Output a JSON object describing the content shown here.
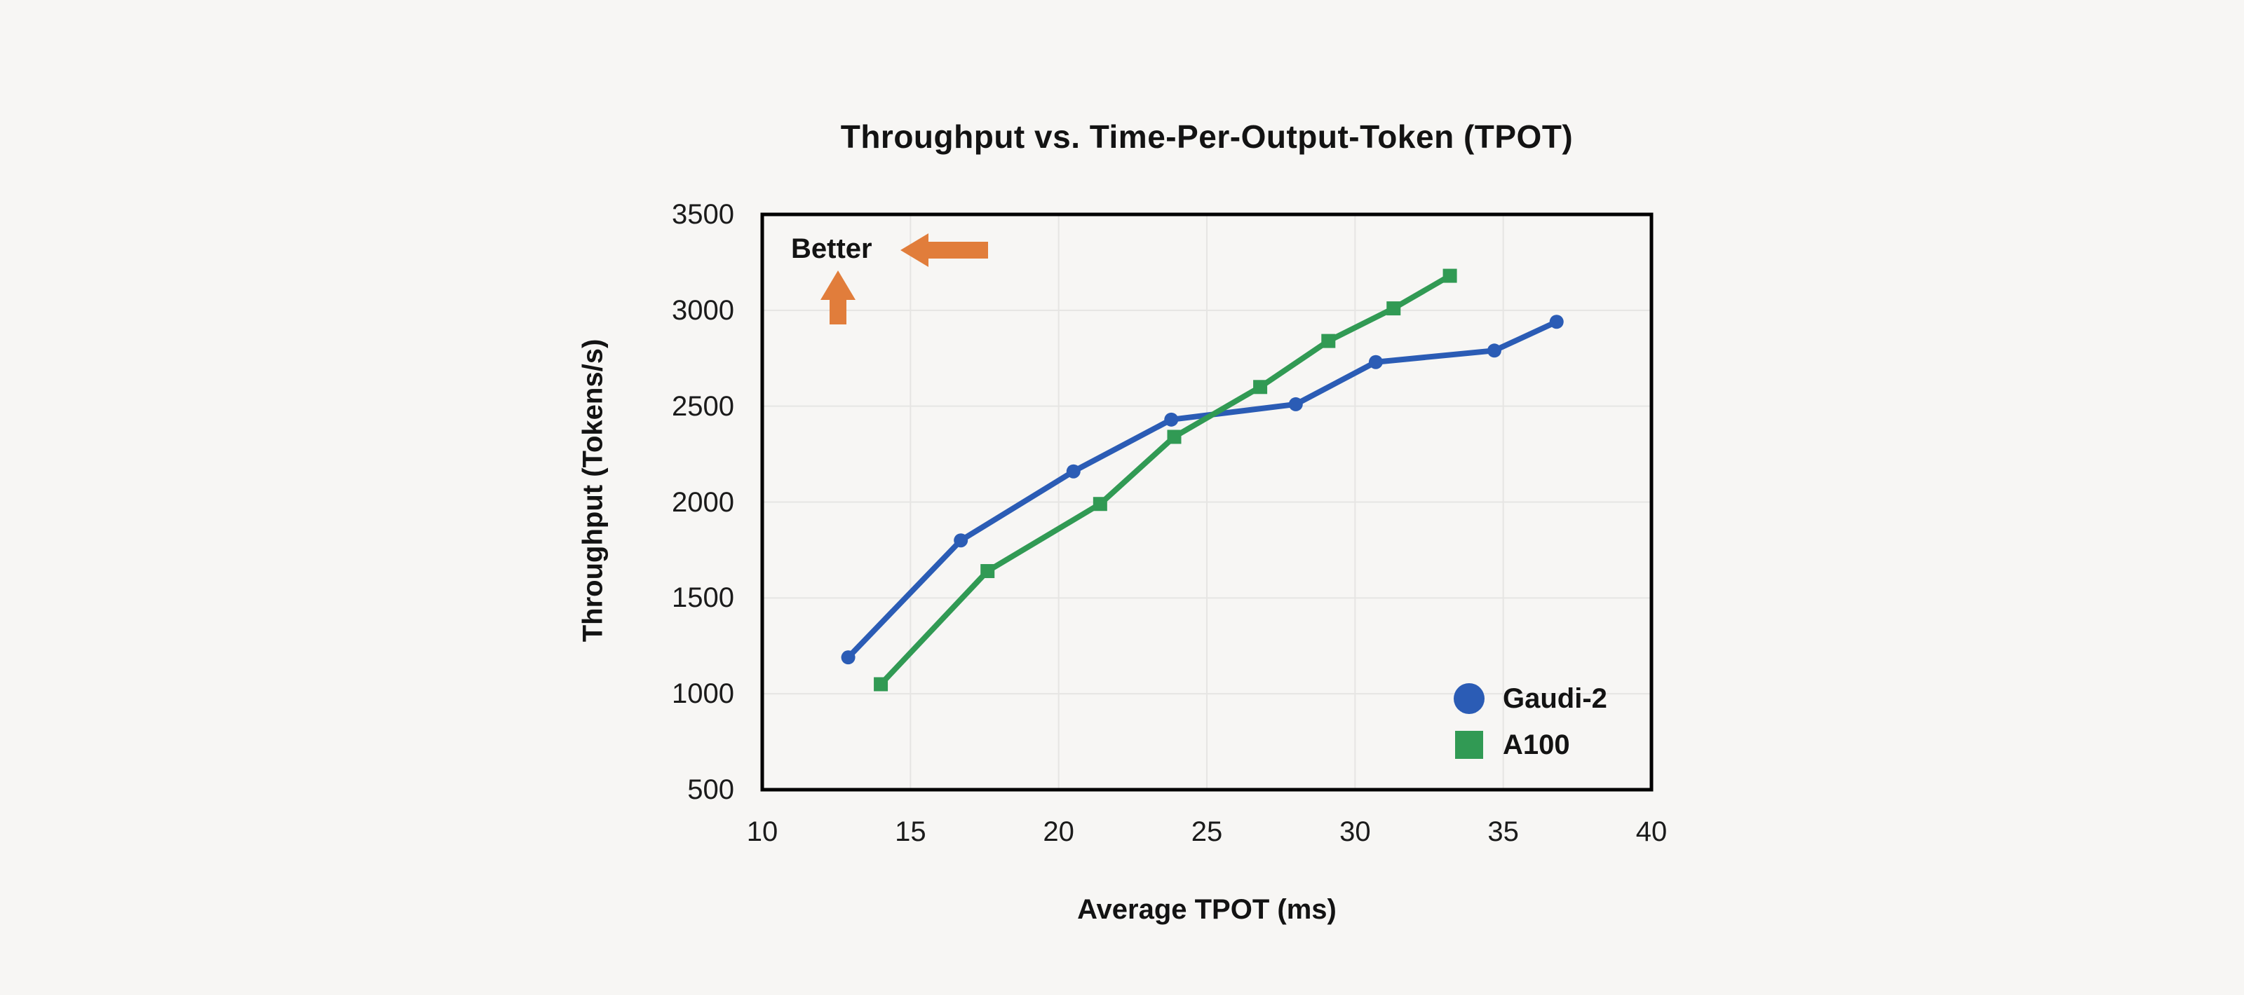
{
  "page": {
    "background": "#f7f6f4"
  },
  "chart_data": {
    "type": "line",
    "title": "Throughput vs. Time-Per-Output-Token (TPOT)",
    "xlabel": "Average TPOT (ms)",
    "ylabel": "Throughput (Tokens/s)",
    "xlim": [
      10,
      40
    ],
    "ylim": [
      500,
      3500
    ],
    "x_ticks": [
      10,
      15,
      20,
      25,
      30,
      35,
      40
    ],
    "y_ticks": [
      500,
      1000,
      1500,
      2000,
      2500,
      3000,
      3500
    ],
    "grid": true,
    "grid_color": "#e6e5e3",
    "border_color": "#000000",
    "legend_position": "inside-bottom-right",
    "annotation": {
      "text": "Better",
      "arrows": [
        "left",
        "up"
      ],
      "color": "#e17d3b"
    },
    "series": [
      {
        "name": "Gaudi-2",
        "color": "#2b5cb5",
        "marker": "circle",
        "points": [
          [
            12.9,
            1190
          ],
          [
            16.7,
            1800
          ],
          [
            20.5,
            2160
          ],
          [
            23.8,
            2430
          ],
          [
            28.0,
            2510
          ],
          [
            30.7,
            2730
          ],
          [
            34.7,
            2790
          ],
          [
            36.8,
            2940
          ]
        ]
      },
      {
        "name": "A100",
        "color": "#319a54",
        "marker": "square",
        "points": [
          [
            14.0,
            1050
          ],
          [
            17.6,
            1640
          ],
          [
            21.4,
            1990
          ],
          [
            23.9,
            2340
          ],
          [
            26.8,
            2600
          ],
          [
            29.1,
            2840
          ],
          [
            31.3,
            3010
          ],
          [
            33.2,
            3180
          ]
        ]
      }
    ]
  }
}
